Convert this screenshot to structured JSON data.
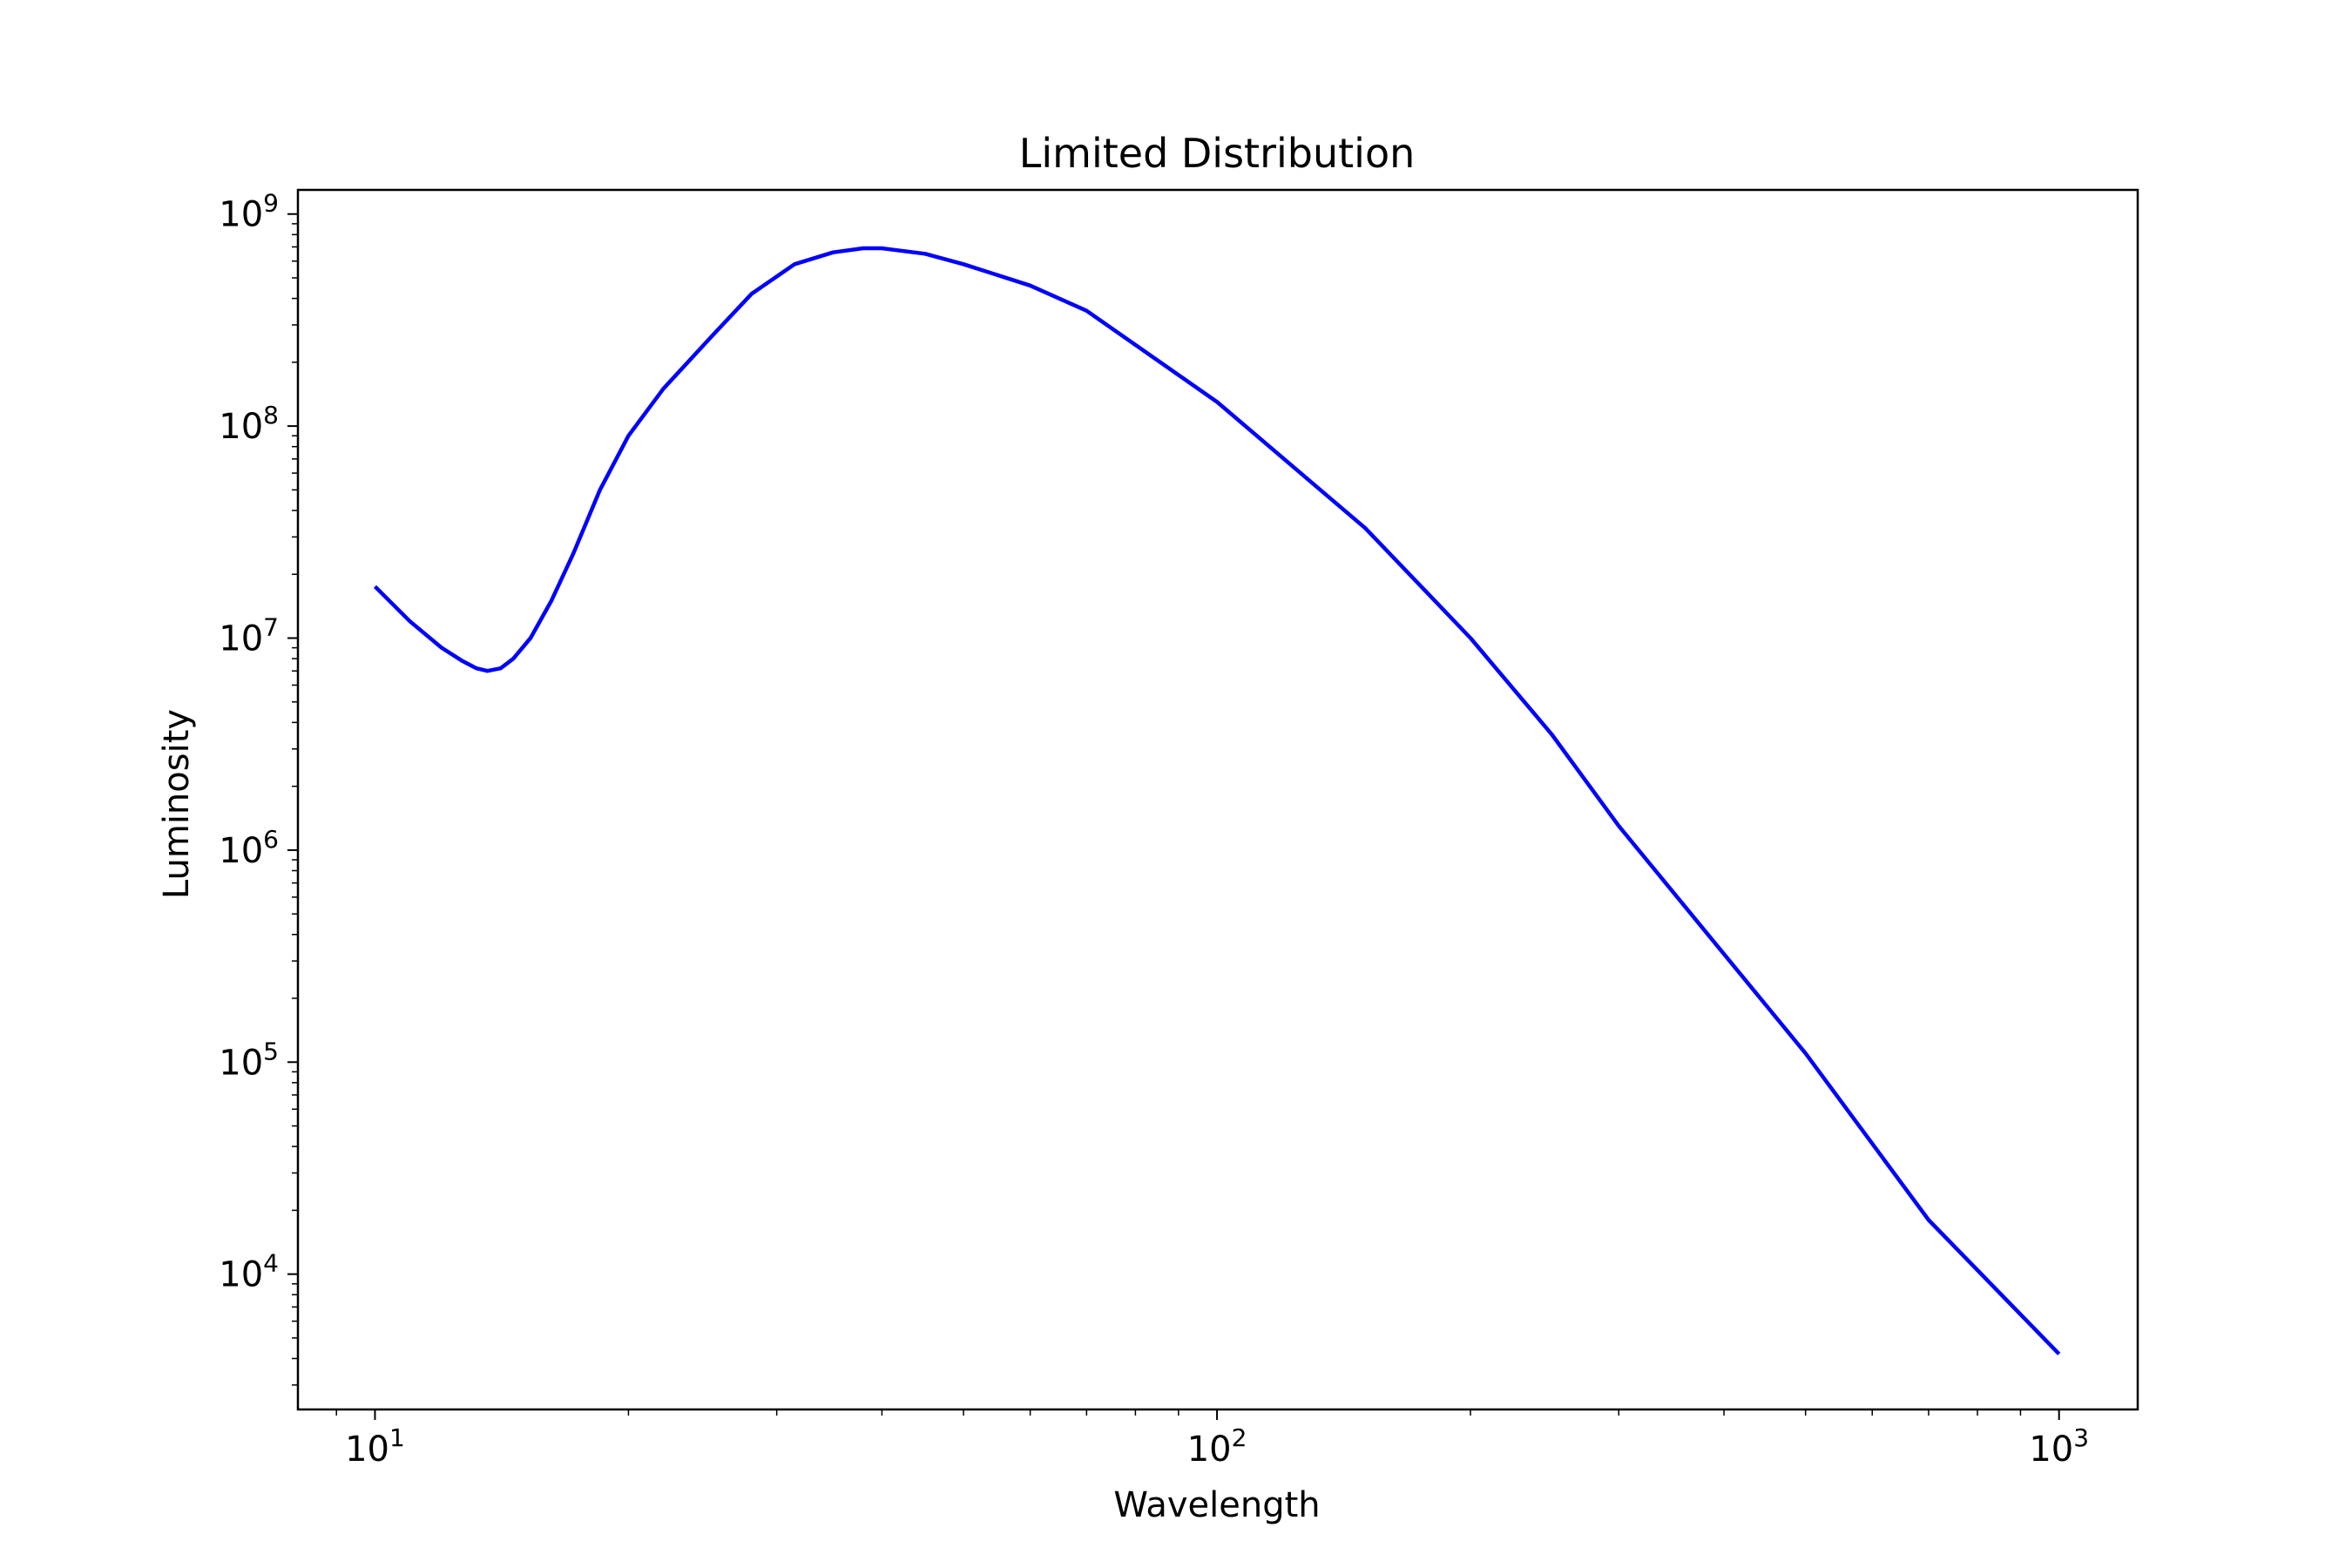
{
  "chart_data": {
    "type": "line",
    "title": "Limited Distribution",
    "xlabel": "Wavelength",
    "ylabel": "Luminosity",
    "xscale": "log",
    "yscale": "log",
    "xlim": [
      8.1,
      1240
    ],
    "ylim": [
      2300,
      1300000000
    ],
    "grid": false,
    "legend": "none",
    "line_color": "#0000ff",
    "x_ticks": [
      {
        "base": "10",
        "exp": "1",
        "value": 10
      },
      {
        "base": "10",
        "exp": "2",
        "value": 100
      },
      {
        "base": "10",
        "exp": "3",
        "value": 1000
      }
    ],
    "y_ticks": [
      {
        "base": "10",
        "exp": "4",
        "value": 10000
      },
      {
        "base": "10",
        "exp": "5",
        "value": 100000
      },
      {
        "base": "10",
        "exp": "6",
        "value": 1000000
      },
      {
        "base": "10",
        "exp": "7",
        "value": 10000000
      },
      {
        "base": "10",
        "exp": "8",
        "value": 100000000
      },
      {
        "base": "10",
        "exp": "9",
        "value": 1000000000
      }
    ],
    "series": [
      {
        "x": [
          10,
          11,
          12,
          12.7,
          13.2,
          13.6,
          14.1,
          14.6,
          15.3,
          16.2,
          17.2,
          18.5,
          20,
          22,
          25,
          28,
          31.5,
          35,
          38,
          40,
          45,
          50,
          60,
          70,
          100,
          150,
          200,
          250,
          300,
          500,
          700,
          1000
        ],
        "y": [
          17500000,
          12000000,
          9000000,
          7800000,
          7200000,
          7000000,
          7200000,
          8000000,
          10000000,
          15000000,
          25000000,
          50000000,
          90000000,
          150000000,
          260000000,
          420000000,
          580000000,
          660000000,
          690000000,
          690000000,
          650000000,
          580000000,
          460000000,
          350000000,
          130000000,
          33000000,
          10000000,
          3500000,
          1300000,
          110000,
          18000,
          4200
        ]
      }
    ]
  }
}
